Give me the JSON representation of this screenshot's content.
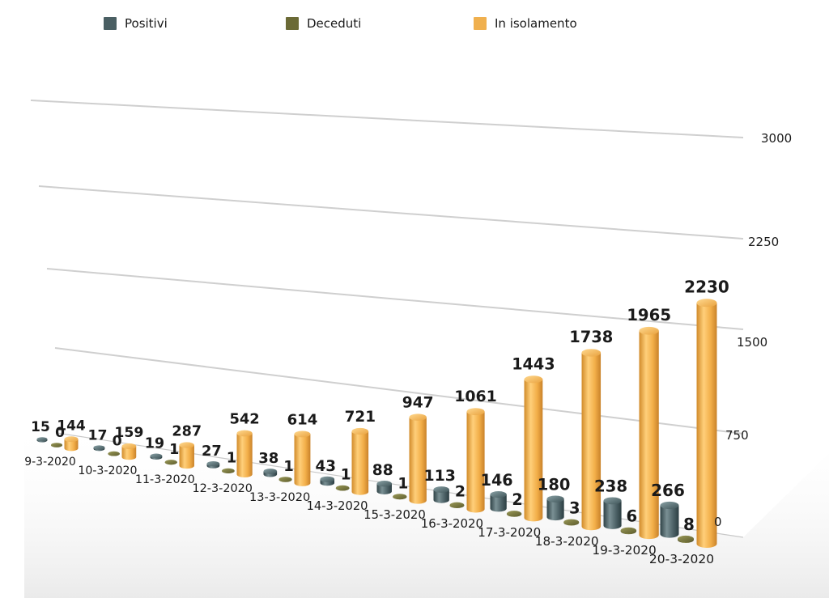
{
  "chart_data": {
    "type": "bar",
    "categories": [
      "9-3-2020",
      "10-3-2020",
      "11-3-2020",
      "12-3-2020",
      "13-3-2020",
      "14-3-2020",
      "15-3-2020",
      "16-3-2020",
      "17-3-2020",
      "18-3-2020",
      "19-3-2020",
      "20-3-2020"
    ],
    "series": [
      {
        "name": "Positivi",
        "color": "#4a5f63",
        "values": [
          15,
          17,
          19,
          27,
          38,
          43,
          88,
          113,
          146,
          180,
          238,
          266
        ]
      },
      {
        "name": "Deceduti",
        "color": "#6b6a36",
        "values": [
          0,
          0,
          1,
          1,
          1,
          1,
          1,
          2,
          2,
          3,
          6,
          8
        ]
      },
      {
        "name": "In isolamento",
        "color": "#f0b04e",
        "values": [
          144,
          159,
          287,
          542,
          614,
          721,
          947,
          1061,
          1443,
          1738,
          1965,
          2230
        ]
      }
    ],
    "y_ticks": [
      "0",
      "750",
      "1500",
      "2250",
      "3000"
    ],
    "ylim": [
      0,
      3000
    ],
    "grid": true,
    "legend_position": "top"
  }
}
